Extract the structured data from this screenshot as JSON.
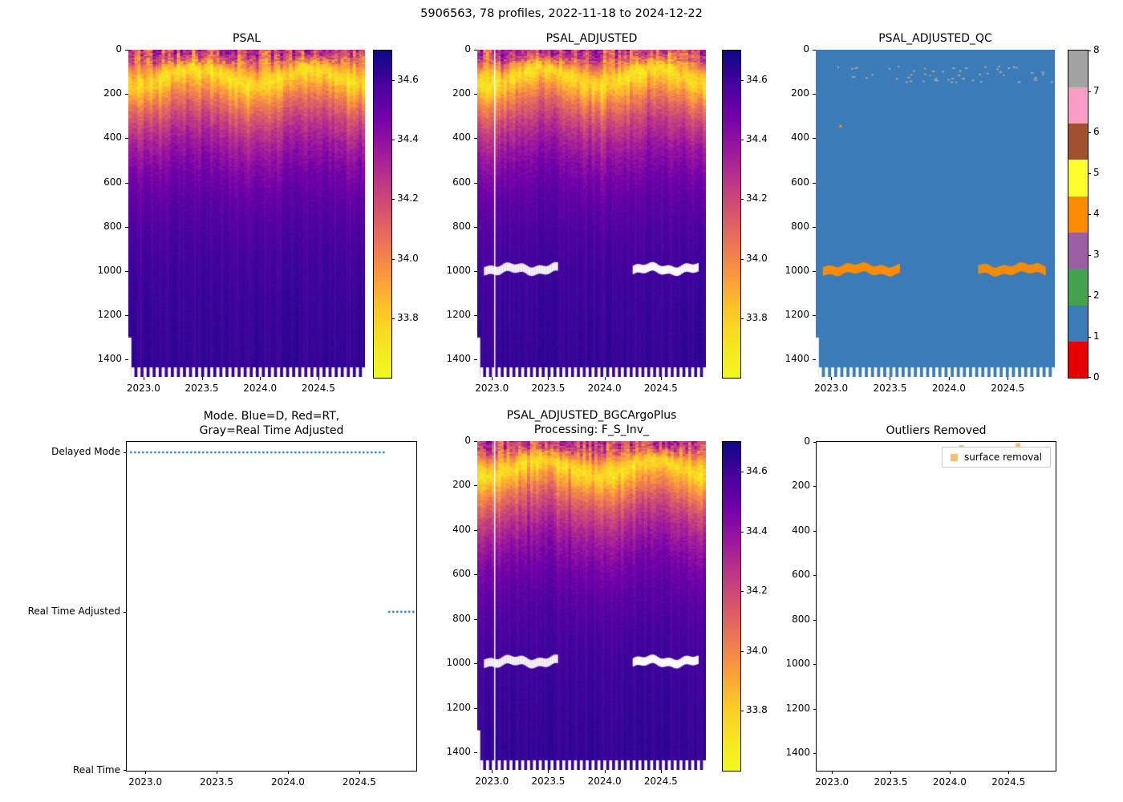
{
  "figure": {
    "suptitle": "5906563, 78 profiles, 2022-11-18 to 2024-12-22",
    "background": "#ffffff"
  },
  "colormaps": {
    "plasma": [
      [
        0.0,
        "#0d0887"
      ],
      [
        0.1,
        "#46039f"
      ],
      [
        0.2,
        "#7201a8"
      ],
      [
        0.3,
        "#9c179e"
      ],
      [
        0.4,
        "#bd3786"
      ],
      [
        0.5,
        "#d8576b"
      ],
      [
        0.6,
        "#ed7953"
      ],
      [
        0.7,
        "#fb9f3a"
      ],
      [
        0.8,
        "#fdca26"
      ],
      [
        0.9,
        "#f6e620"
      ],
      [
        1.0,
        "#f0f921"
      ]
    ]
  },
  "chart_data": [
    {
      "id": "psal",
      "type": "heatmap",
      "title": "PSAL",
      "x_range": [
        2022.87,
        2024.9
      ],
      "x_ticks": [
        {
          "v": 2023.0,
          "label": "2023.0"
        },
        {
          "v": 2023.5,
          "label": "2023.5"
        },
        {
          "v": 2024.0,
          "label": "2024.0"
        },
        {
          "v": 2024.5,
          "label": "2024.5"
        }
      ],
      "depth_range_m": [
        0,
        1478
      ],
      "y_ticks": [
        {
          "v": 0,
          "label": "0"
        },
        {
          "v": 200,
          "label": "200"
        },
        {
          "v": 400,
          "label": "400"
        },
        {
          "v": 600,
          "label": "600"
        },
        {
          "v": 800,
          "label": "800"
        },
        {
          "v": 1000,
          "label": "1000"
        },
        {
          "v": 1200,
          "label": "1200"
        },
        {
          "v": 1400,
          "label": "1400"
        }
      ],
      "n_profiles": 78,
      "colormap": "plasma reversed (yellow = fresh ~33.7 PSU, dark navy = salty ~34.7 PSU)",
      "colorbar": {
        "min": 33.6,
        "max": 34.7,
        "ticks": [
          {
            "v": 34.6,
            "label": "34.6"
          },
          {
            "v": 34.4,
            "label": "34.4"
          },
          {
            "v": 34.2,
            "label": "34.2"
          },
          {
            "v": 34.0,
            "label": "34.0"
          },
          {
            "v": 33.8,
            "label": "33.8"
          }
        ]
      },
      "representative_profile": {
        "depth_m": [
          0,
          60,
          120,
          200,
          300,
          400,
          600,
          800,
          1000,
          1200,
          1478
        ],
        "psal": [
          34.15,
          33.9,
          33.75,
          33.95,
          34.2,
          34.35,
          34.5,
          34.56,
          34.6,
          34.61,
          34.62
        ]
      },
      "features": {
        "salinity_minimum_band": "yellow band ~33.7-33.8 PSU between ~80 and 220 m",
        "bottom_comb_below_m": 1435,
        "first_profile_max_depth_m": 1300
      }
    },
    {
      "id": "psal_adjusted",
      "type": "heatmap",
      "title": "PSAL_ADJUSTED",
      "x_range": [
        2022.87,
        2024.9
      ],
      "x_ticks": [
        {
          "v": 2023.0,
          "label": "2023.0"
        },
        {
          "v": 2023.5,
          "label": "2023.5"
        },
        {
          "v": 2024.0,
          "label": "2024.0"
        },
        {
          "v": 2024.5,
          "label": "2024.5"
        }
      ],
      "depth_range_m": [
        0,
        1478
      ],
      "y_ticks": [
        {
          "v": 0,
          "label": "0"
        },
        {
          "v": 200,
          "label": "200"
        },
        {
          "v": 400,
          "label": "400"
        },
        {
          "v": 600,
          "label": "600"
        },
        {
          "v": 800,
          "label": "800"
        },
        {
          "v": 1000,
          "label": "1000"
        },
        {
          "v": 1200,
          "label": "1200"
        },
        {
          "v": 1400,
          "label": "1400"
        }
      ],
      "n_profiles": 78,
      "colorbar": {
        "min": 33.6,
        "max": 34.7,
        "ticks": [
          {
            "v": 34.6,
            "label": "34.6"
          },
          {
            "v": 34.4,
            "label": "34.4"
          },
          {
            "v": 34.2,
            "label": "34.2"
          },
          {
            "v": 34.0,
            "label": "34.0"
          },
          {
            "v": 33.8,
            "label": "33.8"
          }
        ]
      },
      "white_gap_segments": {
        "depth_m": [
          972,
          1010
        ],
        "t": [
          [
            2022.93,
            2023.58
          ],
          [
            2024.25,
            2024.82
          ]
        ]
      },
      "white_vline_t": 2023.02,
      "representative_profile": {
        "depth_m": [
          0,
          60,
          120,
          200,
          300,
          400,
          600,
          800,
          1000,
          1200,
          1478
        ],
        "psal": [
          34.15,
          33.9,
          33.75,
          33.95,
          34.2,
          34.35,
          34.5,
          34.56,
          34.6,
          34.61,
          34.62
        ]
      }
    },
    {
      "id": "psal_adjusted_qc",
      "type": "heatmap",
      "title": "PSAL_ADJUSTED_QC",
      "x_range": [
        2022.87,
        2024.9
      ],
      "x_ticks": [
        {
          "v": 2023.0,
          "label": "2023.0"
        },
        {
          "v": 2023.5,
          "label": "2023.5"
        },
        {
          "v": 2024.0,
          "label": "2024.0"
        },
        {
          "v": 2024.5,
          "label": "2024.5"
        }
      ],
      "depth_range_m": [
        0,
        1478
      ],
      "y_ticks": [
        {
          "v": 0,
          "label": "0"
        },
        {
          "v": 200,
          "label": "200"
        },
        {
          "v": 400,
          "label": "400"
        },
        {
          "v": 600,
          "label": "600"
        },
        {
          "v": 800,
          "label": "800"
        },
        {
          "v": 1000,
          "label": "1000"
        },
        {
          "v": 1200,
          "label": "1200"
        },
        {
          "v": 1400,
          "label": "1400"
        }
      ],
      "background_qc": 1,
      "qc_scale": [
        {
          "value": 0,
          "color": "#e60000"
        },
        {
          "value": 1,
          "color": "#3b7cb8"
        },
        {
          "value": 2,
          "color": "#44a14d"
        },
        {
          "value": 3,
          "color": "#9a5fa5"
        },
        {
          "value": 4,
          "color": "#ff8c00"
        },
        {
          "value": 5,
          "color": "#ffff2e"
        },
        {
          "value": 6,
          "color": "#a0522d"
        },
        {
          "value": 7,
          "color": "#fb9ec6"
        },
        {
          "value": 8,
          "color": "#a3a3a3"
        }
      ],
      "band": {
        "qc": 4,
        "depth_m": [
          972,
          1012
        ],
        "t_segments": [
          [
            2022.93,
            2023.58
          ],
          [
            2024.25,
            2024.82
          ]
        ]
      },
      "surface_speckles": {
        "qc": 8,
        "depth_m": [
          70,
          145
        ]
      },
      "isolated_flags": [
        {
          "t": 2023.07,
          "depth_m": 340,
          "qc": 4
        }
      ],
      "colorbar": {
        "min": 0,
        "max": 8,
        "ticks": [
          {
            "v": 8,
            "label": "8"
          },
          {
            "v": 7,
            "label": "7"
          },
          {
            "v": 6,
            "label": "6"
          },
          {
            "v": 5,
            "label": "5"
          },
          {
            "v": 4,
            "label": "4"
          },
          {
            "v": 3,
            "label": "3"
          },
          {
            "v": 2,
            "label": "2"
          },
          {
            "v": 1,
            "label": "1"
          },
          {
            "v": 0,
            "label": "0"
          }
        ]
      }
    },
    {
      "id": "mode",
      "type": "scatter",
      "title": "Mode. Blue=D, Red=RT,\nGray=Real Time Adjusted",
      "x_range": [
        2022.87,
        2024.9
      ],
      "x_ticks": [
        {
          "v": 2023.0,
          "label": "2023.0"
        },
        {
          "v": 2023.5,
          "label": "2023.5"
        },
        {
          "v": 2024.0,
          "label": "2024.0"
        },
        {
          "v": 2024.5,
          "label": "2024.5"
        }
      ],
      "categories": [
        {
          "label": "Delayed Mode",
          "f": 0.032
        },
        {
          "label": "Real Time Adjusted",
          "f": 0.517
        },
        {
          "label": "Real Time",
          "f": 1.0
        }
      ],
      "series": [
        {
          "category": "Delayed Mode",
          "x_start": 2022.9,
          "x_end": 2024.69,
          "style": "dotted",
          "color": "#1f77b4"
        },
        {
          "category": "Real Time Adjusted",
          "x_start": 2024.71,
          "x_end": 2024.89,
          "style": "dotted",
          "color": "#1f77b4"
        }
      ]
    },
    {
      "id": "psal_adjusted_bgc",
      "type": "heatmap",
      "title": "PSAL_ADJUSTED_BGCArgoPlus\nProcessing: F_S_Inv_",
      "x_range": [
        2022.87,
        2024.9
      ],
      "x_ticks": [
        {
          "v": 2023.0,
          "label": "2023.0"
        },
        {
          "v": 2023.5,
          "label": "2023.5"
        },
        {
          "v": 2024.0,
          "label": "2024.0"
        },
        {
          "v": 2024.5,
          "label": "2024.5"
        }
      ],
      "depth_range_m": [
        0,
        1478
      ],
      "y_ticks": [
        {
          "v": 0,
          "label": "0"
        },
        {
          "v": 200,
          "label": "200"
        },
        {
          "v": 400,
          "label": "400"
        },
        {
          "v": 600,
          "label": "600"
        },
        {
          "v": 800,
          "label": "800"
        },
        {
          "v": 1000,
          "label": "1000"
        },
        {
          "v": 1200,
          "label": "1200"
        },
        {
          "v": 1400,
          "label": "1400"
        }
      ],
      "n_profiles": 78,
      "colorbar": {
        "min": 33.6,
        "max": 34.7,
        "ticks": [
          {
            "v": 34.6,
            "label": "34.6"
          },
          {
            "v": 34.4,
            "label": "34.4"
          },
          {
            "v": 34.2,
            "label": "34.2"
          },
          {
            "v": 34.0,
            "label": "34.0"
          },
          {
            "v": 33.8,
            "label": "33.8"
          }
        ]
      },
      "white_gap_segments": {
        "depth_m": [
          972,
          1010
        ],
        "t": [
          [
            2022.93,
            2023.58
          ],
          [
            2024.25,
            2024.82
          ]
        ]
      },
      "white_vline_t": 2023.02,
      "representative_profile": {
        "depth_m": [
          0,
          60,
          120,
          200,
          300,
          400,
          600,
          800,
          1000,
          1200,
          1478
        ],
        "psal": [
          34.15,
          33.9,
          33.75,
          33.95,
          34.2,
          34.35,
          34.5,
          34.56,
          34.6,
          34.61,
          34.62
        ]
      }
    },
    {
      "id": "outliers",
      "type": "scatter",
      "title": "Outliers Removed",
      "x_range": [
        2022.87,
        2024.9
      ],
      "x_ticks": [
        {
          "v": 2023.0,
          "label": "2023.0"
        },
        {
          "v": 2023.5,
          "label": "2023.5"
        },
        {
          "v": 2024.0,
          "label": "2024.0"
        },
        {
          "v": 2024.5,
          "label": "2024.5"
        }
      ],
      "depth_range_m": [
        0,
        1478
      ],
      "y_ticks": [
        {
          "v": 0,
          "label": "0"
        },
        {
          "v": 200,
          "label": "200"
        },
        {
          "v": 400,
          "label": "400"
        },
        {
          "v": 600,
          "label": "600"
        },
        {
          "v": 800,
          "label": "800"
        },
        {
          "v": 1000,
          "label": "1000"
        },
        {
          "v": 1200,
          "label": "1200"
        },
        {
          "v": 1400,
          "label": "1400"
        }
      ],
      "legend": {
        "label": "surface removal",
        "marker_color": "#fdbf6f"
      },
      "points": [
        {
          "t": 2024.1,
          "depth_m": 25
        },
        {
          "t": 2024.58,
          "depth_m": 15
        }
      ]
    }
  ]
}
